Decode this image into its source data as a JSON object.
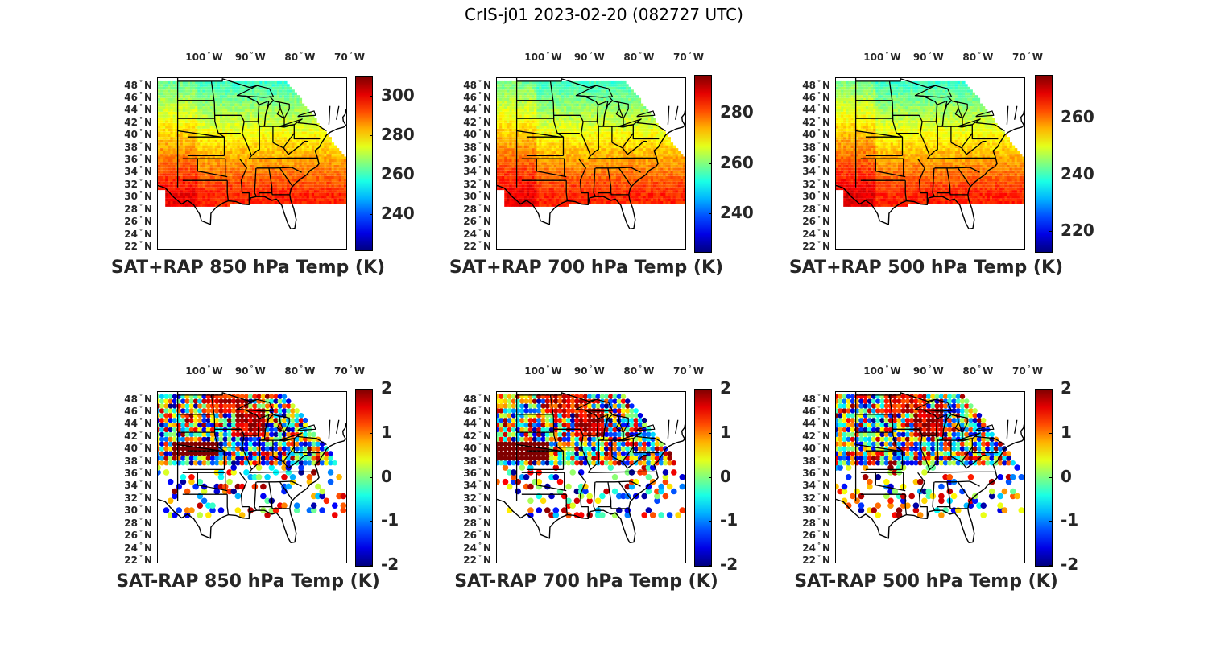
{
  "figure_title": "CrIS-j01 2023-02-20 (082727 UTC)",
  "lon_labels": [
    "100",
    "90",
    "80",
    "70"
  ],
  "lon_suffix": "W",
  "lat_labels": [
    "48",
    "46",
    "44",
    "42",
    "40",
    "38",
    "36",
    "34",
    "32",
    "30",
    "28",
    "26",
    "24",
    "22"
  ],
  "lat_suffix": "N",
  "degree_symbol": "°",
  "colormap": "jet",
  "panels": [
    {
      "title": "SAT+RAP 850 hPa Temp (K)",
      "field": "SAT+RAP",
      "level_hpa": 850,
      "clim": [
        222,
        310
      ],
      "cbar_ticks": [
        "240",
        "260",
        "280",
        "300"
      ],
      "cbar_tick_values": [
        240,
        260,
        280,
        300
      ]
    },
    {
      "title": "SAT+RAP 700 hPa Temp (K)",
      "field": "SAT+RAP",
      "level_hpa": 700,
      "clim": [
        225,
        295
      ],
      "cbar_ticks": [
        "240",
        "260",
        "280"
      ],
      "cbar_tick_values": [
        240,
        260,
        280
      ]
    },
    {
      "title": "SAT+RAP 500 hPa Temp (K)",
      "field": "SAT+RAP",
      "level_hpa": 500,
      "clim": [
        213,
        275
      ],
      "cbar_ticks": [
        "220",
        "240",
        "260"
      ],
      "cbar_tick_values": [
        220,
        240,
        260
      ]
    },
    {
      "title": "SAT-RAP 850 hPa Temp (K)",
      "field": "SAT-RAP",
      "level_hpa": 850,
      "clim": [
        -2,
        2
      ],
      "cbar_ticks": [
        "-2",
        "-1",
        "0",
        "1",
        "2"
      ],
      "cbar_tick_values": [
        -2,
        -1,
        0,
        1,
        2
      ]
    },
    {
      "title": "SAT-RAP 700 hPa Temp (K)",
      "field": "SAT-RAP",
      "level_hpa": 700,
      "clim": [
        -2,
        2
      ],
      "cbar_ticks": [
        "-2",
        "-1",
        "0",
        "1",
        "2"
      ],
      "cbar_tick_values": [
        -2,
        -1,
        0,
        1,
        2
      ]
    },
    {
      "title": "SAT-RAP 500 hPa Temp (K)",
      "field": "SAT-RAP",
      "level_hpa": 500,
      "clim": [
        -2,
        2
      ],
      "cbar_ticks": [
        "-2",
        "-1",
        "0",
        "1",
        "2"
      ],
      "cbar_tick_values": [
        -2,
        -1,
        0,
        1,
        2
      ]
    }
  ]
}
